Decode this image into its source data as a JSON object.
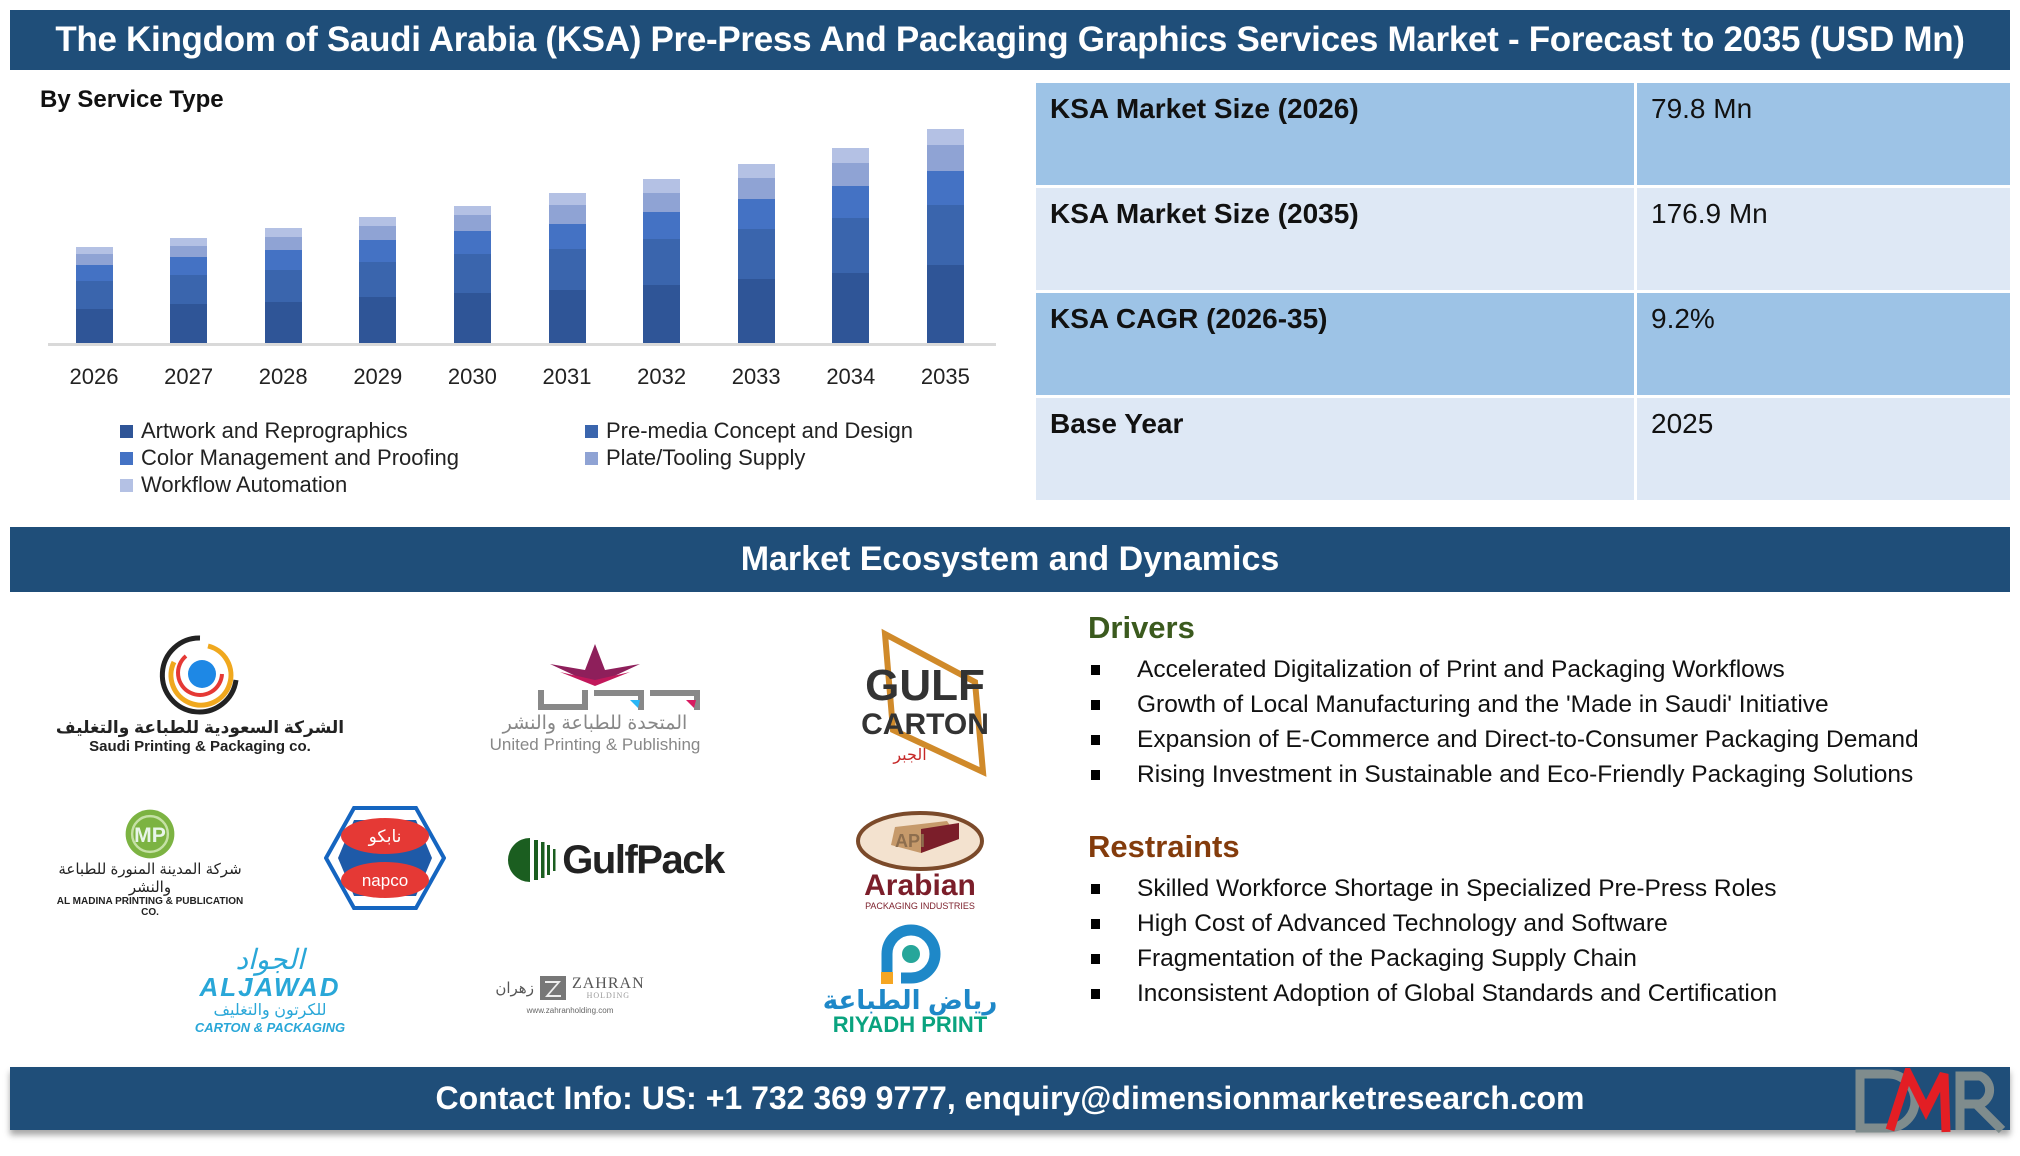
{
  "title": "The Kingdom of Saudi Arabia (KSA) Pre-Press And Packaging Graphics Services Market - Forecast to 2035 (USD Mn)",
  "chart_data": {
    "type": "bar",
    "stacked": true,
    "title": "By Service Type",
    "xlabel": "",
    "ylabel": "",
    "grid": false,
    "legend_position": "bottom",
    "categories": [
      "2026",
      "2027",
      "2028",
      "2029",
      "2030",
      "2031",
      "2032",
      "2033",
      "2034",
      "2035"
    ],
    "series": [
      {
        "name": "Artwork and Reprographics",
        "color": "#2f5597",
        "values": [
          28.3,
          32.2,
          33.9,
          37.7,
          41.0,
          43.8,
          47.9,
          53.2,
          58.1,
          64.4
        ]
      },
      {
        "name": "Pre-media Concept and Design",
        "color": "#3a65ad",
        "values": [
          22.6,
          23.7,
          26.5,
          29.5,
          32.8,
          33.6,
          37.9,
          41.4,
          45.2,
          49.5
        ]
      },
      {
        "name": "Color Management and Proofing",
        "color": "#4472c4",
        "values": [
          13.2,
          14.9,
          16.2,
          17.6,
          18.9,
          21.3,
          22.7,
          24.7,
          26.6,
          28.1
        ]
      },
      {
        "name": "Plate/Tooling Supply",
        "color": "#8fa3d4",
        "values": [
          9.1,
          9.8,
          10.8,
          12.1,
          12.8,
          15.0,
          15.5,
          17.2,
          18.8,
          21.5
        ]
      },
      {
        "name": "Workflow Automation",
        "color": "#b4c1e4",
        "values": [
          6.6,
          6.5,
          7.8,
          7.0,
          8.0,
          10.2,
          11.3,
          11.3,
          12.7,
          13.4
        ]
      }
    ],
    "totals": [
      79.8,
      87.1,
      95.2,
      103.9,
      113.5,
      123.9,
      135.3,
      147.8,
      161.4,
      176.9
    ],
    "ylim": [
      0,
      180
    ]
  },
  "stats": [
    {
      "label": "KSA Market Size (2026)",
      "value": "79.8 Mn"
    },
    {
      "label": "KSA Market Size (2035)",
      "value": "176.9 Mn"
    },
    {
      "label": "KSA CAGR (2026-35)",
      "value": "9.2%"
    },
    {
      "label": "Base Year",
      "value": "2025"
    }
  ],
  "section_banner": "Market Ecosystem and Dynamics",
  "logos": [
    {
      "name": "Saudi Printing & Packaging co.",
      "arabic": "الشركة السعودية للطباعة والتغليف"
    },
    {
      "name": "United Printing & Publishing",
      "arabic": "المتحدة للطباعة والنشر",
      "mark": "upp"
    },
    {
      "name": "GULF CARTON",
      "line1": "GULF",
      "line2": "CARTON",
      "arabic": "الجبر"
    },
    {
      "name": "AL MADINA PRINTING & PUBLICATION CO.",
      "mark": "MP"
    },
    {
      "name": "napco",
      "arabic": "نابكو"
    },
    {
      "name": "GulfPack"
    },
    {
      "name": "Arabian",
      "sub": "PACKAGING INDUSTRIES",
      "mark": "API"
    },
    {
      "name": "ALJAWAD",
      "arabic": "الجواد",
      "sub": "CARTON & PACKAGING",
      "arabic_sub": "للكرتون والتغليف"
    },
    {
      "name": "ZAHRAN",
      "sub": "HOLDING",
      "arabic": "زهران",
      "url": "www.zahranholding.com"
    },
    {
      "name": "RIYADH PRINT",
      "arabic": "رياض الطباعة"
    }
  ],
  "drivers": {
    "heading": "Drivers",
    "items": [
      "Accelerated Digitalization of Print and Packaging Workflows",
      "Growth of Local Manufacturing and the 'Made in Saudi' Initiative",
      "Expansion of E-Commerce and Direct-to-Consumer Packaging Demand",
      "Rising Investment in Sustainable and Eco-Friendly Packaging Solutions"
    ]
  },
  "restraints": {
    "heading": "Restraints",
    "items": [
      "Skilled Workforce Shortage in Specialized Pre-Press Roles",
      "High Cost of Advanced Technology and Software",
      "Fragmentation of the Packaging Supply Chain",
      "Inconsistent Adoption of Global Standards and Certification"
    ]
  },
  "footer": {
    "contact": "Contact Info: US: +1 732 369 9777, enquiry@dimensionmarketresearch.com",
    "logo_text": "DMR"
  },
  "colors": {
    "banner": "#1f4e79",
    "table_dark": "#9dc3e6",
    "table_light": "#dee8f5",
    "drivers_heading": "#3b5a1e",
    "restraints_heading": "#843c0c",
    "dmr_red": "#e31e24",
    "dmr_gray": "#7f8c8d"
  }
}
